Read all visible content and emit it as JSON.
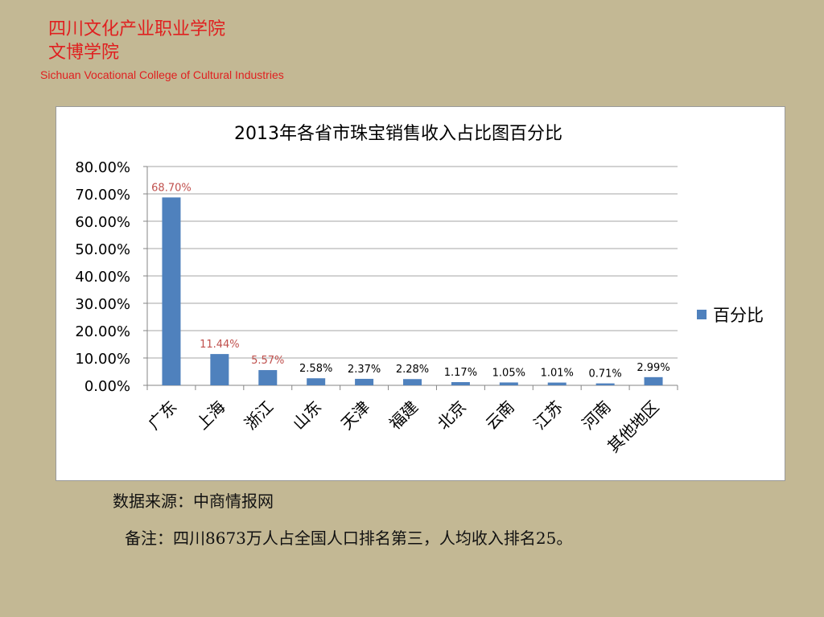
{
  "header": {
    "cn_line1": "四川文化产业职业学院",
    "cn_line2": "文博学院",
    "en": "Sichuan Vocational College of Cultural Industries",
    "accent_color": "#e02020"
  },
  "notes": {
    "source": "数据来源：中商情报网",
    "remark": "备注：四川8673万人占全国人口排名第三，人均收入排名25。"
  },
  "chart_data": {
    "type": "bar",
    "title": "2013年各省市珠宝销售收入占比图百分比",
    "categories": [
      "广东",
      "上海",
      "浙江",
      "山东",
      "天津",
      "福建",
      "北京",
      "云南",
      "江苏",
      "河南",
      "其他地区"
    ],
    "series": [
      {
        "name": "百分比",
        "color": "#4f81bd",
        "values": [
          68.7,
          11.44,
          5.57,
          2.58,
          2.37,
          2.28,
          1.17,
          1.05,
          1.01,
          0.71,
          2.99
        ]
      }
    ],
    "data_labels": [
      "68.70%",
      "11.44%",
      "5.57%",
      "2.58%",
      "2.37%",
      "2.28%",
      "1.17%",
      "1.05%",
      "1.01%",
      "0.71%",
      "2.99%"
    ],
    "label_colors": [
      "#c0504d",
      "#c0504d",
      "#c0504d",
      "#000000",
      "#000000",
      "#000000",
      "#000000",
      "#000000",
      "#000000",
      "#000000",
      "#000000"
    ],
    "y_ticks": [
      "0.00%",
      "10.00%",
      "20.00%",
      "30.00%",
      "40.00%",
      "50.00%",
      "60.00%",
      "70.00%",
      "80.00%"
    ],
    "ylim": [
      0,
      80
    ],
    "grid": true,
    "legend_position": "right"
  }
}
